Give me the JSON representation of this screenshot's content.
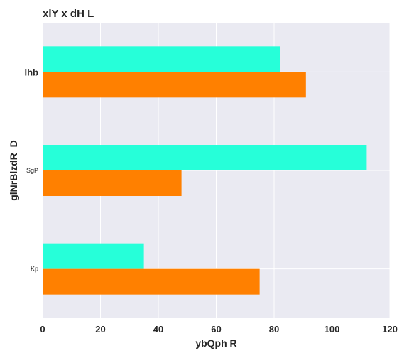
{
  "chart_data": {
    "type": "bar",
    "orientation": "horizontal",
    "title": "xlY x dH L",
    "xlabel": "ybQph R",
    "ylabel": "glNrBlzdR  D",
    "categories": [
      "lhb",
      "SgP",
      "Kp"
    ],
    "category_label_styles": [
      {
        "size": "large",
        "weight": "bold"
      },
      {
        "size": "small",
        "weight": "normal"
      },
      {
        "size": "small",
        "weight": "normal"
      }
    ],
    "series": [
      {
        "values": [
          82,
          112,
          35
        ],
        "color": "#26ffd9"
      },
      {
        "values": [
          91,
          48,
          75
        ],
        "color": "#ff8000"
      }
    ],
    "xlim": [
      0,
      120
    ],
    "xticks": [
      0,
      20,
      40,
      60,
      80,
      100,
      120
    ],
    "grid": true,
    "background": "#eaeaf2",
    "legend": "none"
  }
}
